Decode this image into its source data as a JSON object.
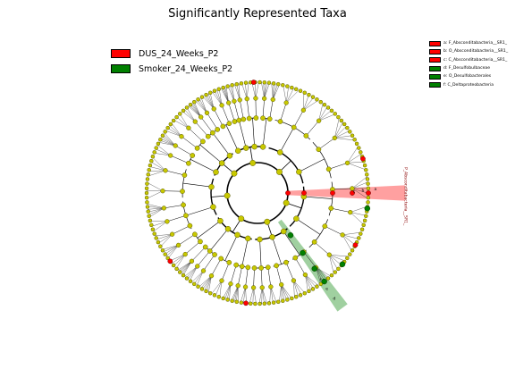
{
  "title": "Significantly Represented Taxa",
  "class_legend": [
    {
      "label": "DUS_24_Weeks_P2",
      "color": "#ff0000"
    },
    {
      "label": "Smoker_24_Weeks_P2",
      "color": "#008000"
    }
  ],
  "taxa_legend": [
    {
      "label": "a: F_Absconditabacteria__SR1_",
      "color": "#ff0000"
    },
    {
      "label": "b: O_Absconditabacteria__SR1_",
      "color": "#ff0000"
    },
    {
      "label": "c: C_Absconditabacteria__SR1_",
      "color": "#ff0000"
    },
    {
      "label": "d: F_Desulfobulbaceae",
      "color": "#008000"
    },
    {
      "label": "e: O_Desulfobacterales",
      "color": "#008000"
    },
    {
      "label": "f: C_Deltaproteobacteria",
      "color": "#008000"
    }
  ],
  "clade_labels": {
    "phylum_red": "P_Absconditabacteria__SR1_",
    "marker_a": "a",
    "marker_b": "b",
    "marker_c": "c",
    "marker_d": "d",
    "marker_e": "e",
    "marker_f": "f"
  },
  "colors": {
    "node": "#c8c800",
    "node_stroke": "#5a5a00",
    "dus": "#ff0000",
    "smoker": "#008000",
    "dus_band": "#ff8080",
    "smoker_band": "#80c080"
  }
}
